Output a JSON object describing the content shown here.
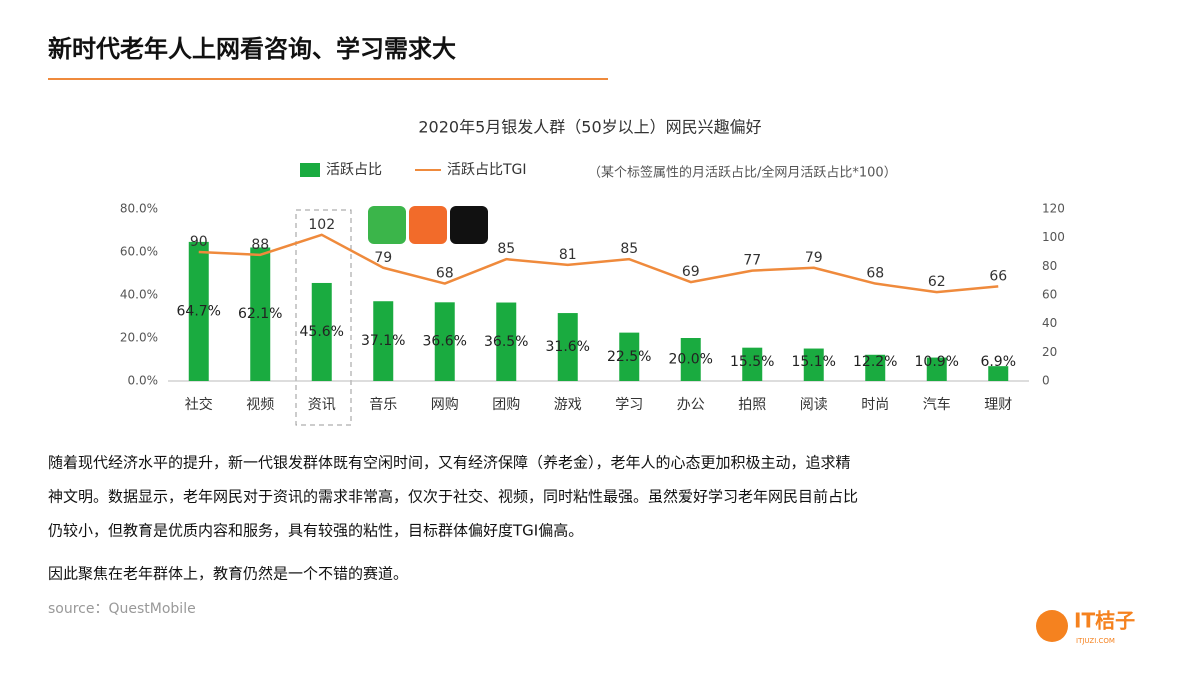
{
  "header": {
    "title": "新时代老年人上网看咨询、学习需求大"
  },
  "chart_data": {
    "type": "bar",
    "title": "2020年5月银发人群（50岁以上）网民兴趣偏好",
    "subtitle": "（某个标签属性的月活跃占比/全网月活跃占比*100）",
    "categories": [
      "社交",
      "视频",
      "资讯",
      "音乐",
      "网购",
      "团购",
      "游戏",
      "学习",
      "办公",
      "拍照",
      "阅读",
      "时尚",
      "汽车",
      "理财"
    ],
    "series": [
      {
        "name": "活跃占比",
        "type": "bar",
        "color": "#1aab40",
        "values": [
          64.7,
          62.1,
          45.6,
          37.1,
          36.6,
          36.5,
          31.6,
          22.5,
          20.0,
          15.5,
          15.1,
          12.2,
          10.9,
          6.9
        ],
        "value_labels": [
          "64.7%",
          "62.1%",
          "45.6%",
          "37.1%",
          "36.6%",
          "36.5%",
          "31.6%",
          "22.5%",
          "20.0%",
          "15.5%",
          "15.1%",
          "12.2%",
          "10.9%",
          "6.9%"
        ]
      },
      {
        "name": "活跃占比TGI",
        "type": "line",
        "color": "#ef8a3c",
        "axis": "y2",
        "values": [
          90,
          88,
          102,
          79,
          68,
          85,
          81,
          85,
          69,
          77,
          79,
          68,
          62,
          66
        ]
      }
    ],
    "ylim": [
      0,
      80
    ],
    "yticks": [
      {
        "value": 0,
        "label": "0.0%"
      },
      {
        "value": 20,
        "label": "20.0%"
      },
      {
        "value": 40,
        "label": "40.0%"
      },
      {
        "value": 60,
        "label": "60.0%"
      },
      {
        "value": 80,
        "label": "80.0%"
      }
    ],
    "y2lim": [
      0,
      120
    ],
    "y2ticks": [
      0,
      20,
      40,
      60,
      80,
      100,
      120
    ],
    "grid": false
  },
  "body": {
    "lines": [
      "随着现代经济水平的提升，新一代银发群体既有空闲时间，又有经济保障（养老金），老年人的心态更加积极主动，追求精",
      "神文明。数据显示，老年网民对于资讯的需求非常高，仅次于社交、视频，同时粘性最强。虽然爱好学习老年网民目前占比",
      "仍较小，但教育是优质内容和服务，具有较强的粘性，目标群体偏好度TGI偏高。",
      "因此聚焦在老年群体上，教育仍然是一个不错的赛道。"
    ]
  },
  "source": "source：QuestMobile",
  "logo": {
    "text": "IT桔子",
    "subtext": "ITJUZI.COM"
  }
}
